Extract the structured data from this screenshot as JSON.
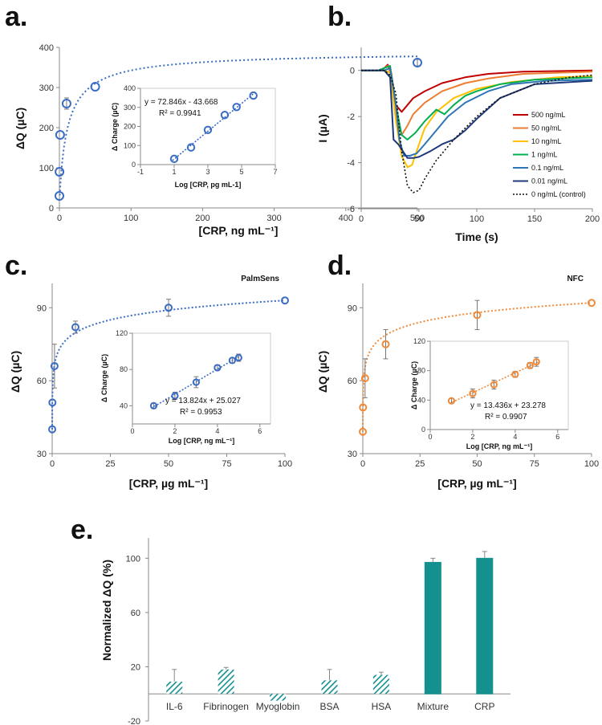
{
  "colors": {
    "blue": "#3a6cc4",
    "orange": "#ee8a3a",
    "teal": "#14908f",
    "axis": "#888888"
  },
  "chart_data": [
    {
      "panel": "a.",
      "type": "scatter",
      "xlabel": "[CRP, ng mL⁻¹]",
      "ylabel": "ΔQ (µC)",
      "xlim": [
        0,
        500
      ],
      "ylim": [
        0,
        400
      ],
      "xticks": [
        "0",
        "100",
        "200",
        "300",
        "400",
        "500"
      ],
      "yticks": [
        "0",
        "100",
        "200",
        "300",
        "400"
      ],
      "x": [
        0.01,
        0.1,
        1,
        10,
        50,
        500
      ],
      "y": [
        30,
        90,
        182,
        260,
        302,
        362
      ],
      "err": [
        0,
        0,
        0,
        14,
        0,
        8
      ],
      "fit": {
        "vmax": 380,
        "k": 11
      },
      "inset": {
        "xlabel": "Log [CRP, pg mL-1]",
        "ylabel": "Δ Charge (µC)",
        "xlim": [
          -1,
          7
        ],
        "ylim": [
          0,
          400
        ],
        "xticks": [
          "-1",
          "1",
          "3",
          "5",
          "7"
        ],
        "yticks": [
          "0",
          "100",
          "200",
          "300",
          "400"
        ],
        "x": [
          1,
          2,
          3,
          4,
          4.7,
          5.7
        ],
        "y": [
          30,
          90,
          182,
          260,
          302,
          362
        ],
        "equation": "y = 72.846x - 43.668",
        "r2": "R² = 0.9941"
      }
    },
    {
      "panel": "b.",
      "type": "line",
      "xlabel": "Time (s)",
      "ylabel": "I (µA)",
      "xlim": [
        0,
        200
      ],
      "ylim": [
        -6,
        1
      ],
      "xticks": [
        "0",
        "50",
        "100",
        "150",
        "200"
      ],
      "yticks": [
        "0",
        "-2",
        "-4",
        "-6"
      ],
      "series": [
        {
          "name": "500 ng/mL",
          "color": "#c00000",
          "dash": false,
          "x": [
            0,
            15,
            20,
            23,
            26,
            30,
            35,
            40,
            45,
            55,
            70,
            90,
            110,
            140,
            200
          ],
          "y": [
            0,
            0,
            0.1,
            0.25,
            -0.1,
            -1.5,
            -1.8,
            -1.5,
            -1.2,
            -0.9,
            -0.55,
            -0.3,
            -0.15,
            -0.05,
            0
          ]
        },
        {
          "name": "50 ng/mL",
          "color": "#ed7d31",
          "dash": false,
          "x": [
            0,
            15,
            20,
            23,
            26,
            30,
            35,
            40,
            45,
            55,
            70,
            90,
            110,
            140,
            200
          ],
          "y": [
            0,
            0,
            0.1,
            0.2,
            -0.2,
            -2.0,
            -2.8,
            -2.4,
            -1.9,
            -1.4,
            -0.9,
            -0.55,
            -0.35,
            -0.15,
            -0.05
          ]
        },
        {
          "name": "10 ng/mL",
          "color": "#ffc000",
          "dash": false,
          "x": [
            0,
            15,
            20,
            25,
            30,
            35,
            40,
            44,
            48,
            55,
            65,
            80,
            100,
            130,
            170,
            200
          ],
          "y": [
            0,
            0,
            0,
            -0.1,
            -2.2,
            -3.7,
            -4.2,
            -4.1,
            -3.5,
            -2.5,
            -1.8,
            -1.2,
            -0.8,
            -0.5,
            -0.3,
            -0.25
          ]
        },
        {
          "name": "1 ng/mL",
          "color": "#00b050",
          "dash": false,
          "x": [
            0,
            15,
            20,
            25,
            30,
            35,
            40,
            47,
            55,
            65,
            72,
            80,
            90,
            100,
            120,
            150,
            200
          ],
          "y": [
            0,
            0,
            0.1,
            0.2,
            -1.5,
            -2.8,
            -3.0,
            -2.7,
            -2.2,
            -1.7,
            -1.9,
            -1.5,
            -1.1,
            -0.9,
            -0.6,
            -0.4,
            -0.3
          ]
        },
        {
          "name": "0.1 ng/mL",
          "color": "#2e75b6",
          "dash": false,
          "x": [
            0,
            15,
            20,
            25,
            30,
            33,
            37,
            42,
            48,
            55,
            65,
            75,
            90,
            110,
            130,
            160,
            200
          ],
          "y": [
            0,
            0,
            0,
            0.1,
            -1.5,
            -3.0,
            -3.7,
            -3.7,
            -3.6,
            -3.2,
            -2.6,
            -2.0,
            -1.4,
            -0.9,
            -0.6,
            -0.45,
            -0.4
          ]
        },
        {
          "name": "0.01 ng/mL",
          "color": "#1f3a7a",
          "dash": false,
          "x": [
            0,
            15,
            20,
            25,
            28,
            32,
            36,
            40,
            45,
            50,
            60,
            70,
            75,
            80,
            90,
            100,
            120,
            150,
            200
          ],
          "y": [
            0,
            0,
            0,
            -0.3,
            -3.0,
            -3.2,
            -3.5,
            -3.8,
            -3.8,
            -3.75,
            -3.5,
            -3.2,
            -3.1,
            -3.0,
            -2.6,
            -2.1,
            -1.2,
            -0.6,
            -0.45
          ]
        },
        {
          "name": "0 ng/mL (control)",
          "color": "#111111",
          "dash": true,
          "x": [
            0,
            20,
            25,
            30,
            35,
            40,
            45,
            50,
            55,
            65,
            80,
            100,
            120,
            150,
            180,
            200
          ],
          "y": [
            0,
            0,
            -0.2,
            -1.0,
            -3.5,
            -5.0,
            -5.3,
            -5.2,
            -4.7,
            -3.9,
            -3.0,
            -2.0,
            -1.2,
            -0.6,
            -0.3,
            -0.2
          ]
        }
      ]
    },
    {
      "panel": "c.",
      "type": "scatter",
      "tag": "PalmSens",
      "xlabel": "[CRP, µg mL⁻¹]",
      "ylabel": "ΔQ (µC)",
      "xlim": [
        0,
        100
      ],
      "ylim": [
        30,
        100
      ],
      "xticks": [
        "0",
        "25",
        "50",
        "75",
        "100"
      ],
      "yticks": [
        "30",
        "60",
        "90"
      ],
      "x": [
        0.01,
        0.1,
        1,
        10,
        50,
        100
      ],
      "y": [
        40,
        51,
        66,
        82,
        90,
        93
      ],
      "err": [
        0,
        0,
        9,
        2.5,
        3.5,
        0
      ],
      "fit": {
        "base": 55,
        "a": 7.8
      },
      "inset": {
        "xlabel": "Log [CRP, ng mL⁻¹]",
        "ylabel": "Δ Charge (µC)",
        "xlim": [
          0,
          6.5
        ],
        "ylim": [
          20,
          120
        ],
        "xticks": [
          "0",
          "2",
          "4",
          "6"
        ],
        "yticks": [
          "40",
          "80",
          "120"
        ],
        "x": [
          1,
          2,
          3,
          4,
          4.7,
          5
        ],
        "y": [
          40,
          51,
          66,
          82,
          90,
          93
        ],
        "err": [
          3,
          4,
          6,
          3,
          3,
          4
        ],
        "equation": "y = 13.824x + 25.027",
        "r2": "R² = 0.9953"
      }
    },
    {
      "panel": "d.",
      "type": "scatter",
      "tag": "NFC",
      "xlabel": "[CRP, µg mL⁻¹]",
      "ylabel": "ΔQ (µC)",
      "xlim": [
        0,
        100
      ],
      "ylim": [
        30,
        100
      ],
      "xticks": [
        "0",
        "25",
        "50",
        "75",
        "100"
      ],
      "yticks": [
        "30",
        "60",
        "90"
      ],
      "x": [
        0.01,
        0.1,
        1,
        10,
        50,
        100
      ],
      "y": [
        39,
        49,
        61,
        75,
        87,
        92
      ],
      "err": [
        0,
        0,
        8,
        6,
        6,
        0
      ],
      "fit": {
        "base": 51,
        "a": 8.7
      },
      "inset": {
        "xlabel": "Log [CRP, ng mL⁻¹]",
        "ylabel": "Δ Charge (µC)",
        "xlim": [
          0,
          6.5
        ],
        "ylim": [
          0,
          120
        ],
        "xticks": [
          "0",
          "2",
          "4",
          "6"
        ],
        "yticks": [
          "0",
          "40",
          "80",
          "120"
        ],
        "x": [
          1,
          2,
          3,
          4,
          4.7,
          5
        ],
        "y": [
          39,
          49,
          61,
          75,
          87,
          92
        ],
        "err": [
          3,
          6,
          6,
          4,
          4,
          6
        ],
        "equation": "y = 13.436x + 23.278",
        "r2": "R² = 0.9907"
      }
    },
    {
      "panel": "e.",
      "type": "bar",
      "ylabel": "Normalized ΔQ (%)",
      "ylim": [
        -20,
        115
      ],
      "yticks": [
        "-20",
        "20",
        "60",
        "100"
      ],
      "categories": [
        "IL-6",
        "Fibrinogen",
        "Myoglobin",
        "BSA",
        "HSA",
        "Mixture",
        "CRP"
      ],
      "values": [
        9,
        18,
        -5,
        10,
        14,
        97,
        100
      ],
      "errors": [
        9,
        1.5,
        0,
        8,
        2,
        3,
        5
      ],
      "hatched": [
        true,
        true,
        true,
        true,
        true,
        false,
        false
      ]
    }
  ]
}
